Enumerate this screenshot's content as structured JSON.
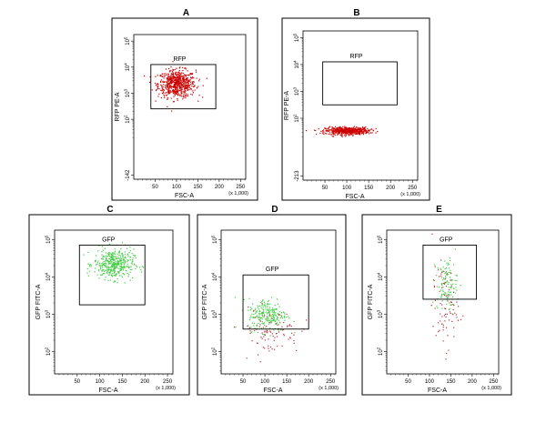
{
  "chart_data": [
    {
      "id": "A",
      "type": "scatter",
      "title": "A",
      "xlabel": "FSC-A",
      "ylabel": "RFP PE-A",
      "x_unit": "(x 1,000)",
      "xlim": [
        0,
        262
      ],
      "x_ticks": [
        50,
        100,
        150,
        200,
        250
      ],
      "ylim_log": [
        -142,
        100000
      ],
      "y_ticks": [
        "-142",
        "10^2",
        "10^3",
        "10^4",
        "10^5"
      ],
      "gate": {
        "label": "RFP",
        "x": [
          40,
          192
        ],
        "y_log": [
          2.4,
          4.1
        ]
      },
      "series": [
        {
          "color": "#cc0000",
          "clusters": [
            {
              "cx": 100,
              "cy_log": 3.38,
              "sx": 22,
              "sy": 0.26,
              "n": 650
            }
          ]
        }
      ]
    },
    {
      "id": "B",
      "type": "scatter",
      "title": "B",
      "xlabel": "FSC-A",
      "ylabel": "RFP PE-A",
      "x_unit": "(x 1,000)",
      "xlim": [
        0,
        262
      ],
      "x_ticks": [
        50,
        100,
        150,
        200,
        250
      ],
      "ylim_log": [
        -213,
        100000
      ],
      "y_ticks": [
        "-213",
        "10^2",
        "10^3",
        "10^4",
        "10^5"
      ],
      "gate": {
        "label": "RFP",
        "x": [
          45,
          215
        ],
        "y_log": [
          2.5,
          4.1
        ]
      },
      "series": [
        {
          "color": "#cc0000",
          "clusters": [
            {
              "cx": 100,
              "cy_log": 1.55,
              "sx": 25,
              "sy": 0.07,
              "n": 550
            }
          ]
        }
      ]
    },
    {
      "id": "C",
      "type": "scatter",
      "title": "C",
      "xlabel": "FSC-A",
      "ylabel": "GFP FITC-A",
      "x_unit": "(x 1,000)",
      "xlim": [
        0,
        262
      ],
      "x_ticks": [
        50,
        100,
        150,
        200,
        250
      ],
      "ylim_log": [
        1,
        100000
      ],
      "y_ticks": [
        "10^2",
        "10^3",
        "10^4",
        "10^5"
      ],
      "gate": {
        "label": "GFP",
        "x": [
          55,
          200
        ],
        "y_log": [
          3.25,
          4.85
        ]
      },
      "series": [
        {
          "color": "#44cc44",
          "clusters": [
            {
              "cx": 130,
              "cy_log": 4.35,
              "sx": 22,
              "sy": 0.2,
              "n": 420
            }
          ]
        }
      ]
    },
    {
      "id": "D",
      "type": "scatter",
      "title": "D",
      "xlabel": "FSC-A",
      "ylabel": "GFP FITC-A",
      "x_unit": "(x 1,000)",
      "xlim": [
        0,
        262
      ],
      "x_ticks": [
        50,
        100,
        150,
        200,
        250
      ],
      "ylim_log": [
        1,
        100000
      ],
      "y_ticks": [
        "10^2",
        "10^3",
        "10^4",
        "10^5"
      ],
      "gate": {
        "label": "GFP",
        "x": [
          50,
          200
        ],
        "y_log": [
          2.6,
          4.05
        ]
      },
      "series": [
        {
          "color": "#44cc44",
          "clusters": [
            {
              "cx": 105,
              "cy_log": 3.0,
              "sx": 22,
              "sy": 0.22,
              "n": 240
            }
          ]
        },
        {
          "color": "#bb3344",
          "clusters": [
            {
              "cx": 110,
              "cy_log": 2.55,
              "sx": 35,
              "sy": 0.3,
              "n": 90
            }
          ]
        }
      ]
    },
    {
      "id": "E",
      "type": "scatter",
      "title": "E",
      "xlabel": "FSC-A",
      "ylabel": "GFP FITC-A",
      "x_unit": "(x 1,000)",
      "xlim": [
        0,
        262
      ],
      "x_ticks": [
        50,
        100,
        150,
        200,
        250
      ],
      "ylim_log": [
        1,
        100000
      ],
      "y_ticks": [
        "10^2",
        "10^3",
        "10^4",
        "10^5"
      ],
      "gate": {
        "label": "GFP",
        "x": [
          85,
          210
        ],
        "y_log": [
          3.4,
          4.85
        ]
      },
      "series": [
        {
          "color": "#44cc44",
          "clusters": [
            {
              "cx": 140,
              "cy_log": 3.8,
              "sx": 12,
              "sy": 0.35,
              "n": 120
            }
          ]
        },
        {
          "color": "#bb3344",
          "clusters": [
            {
              "cx": 135,
              "cy_log": 3.2,
              "sx": 15,
              "sy": 0.55,
              "n": 80
            }
          ]
        }
      ]
    }
  ]
}
